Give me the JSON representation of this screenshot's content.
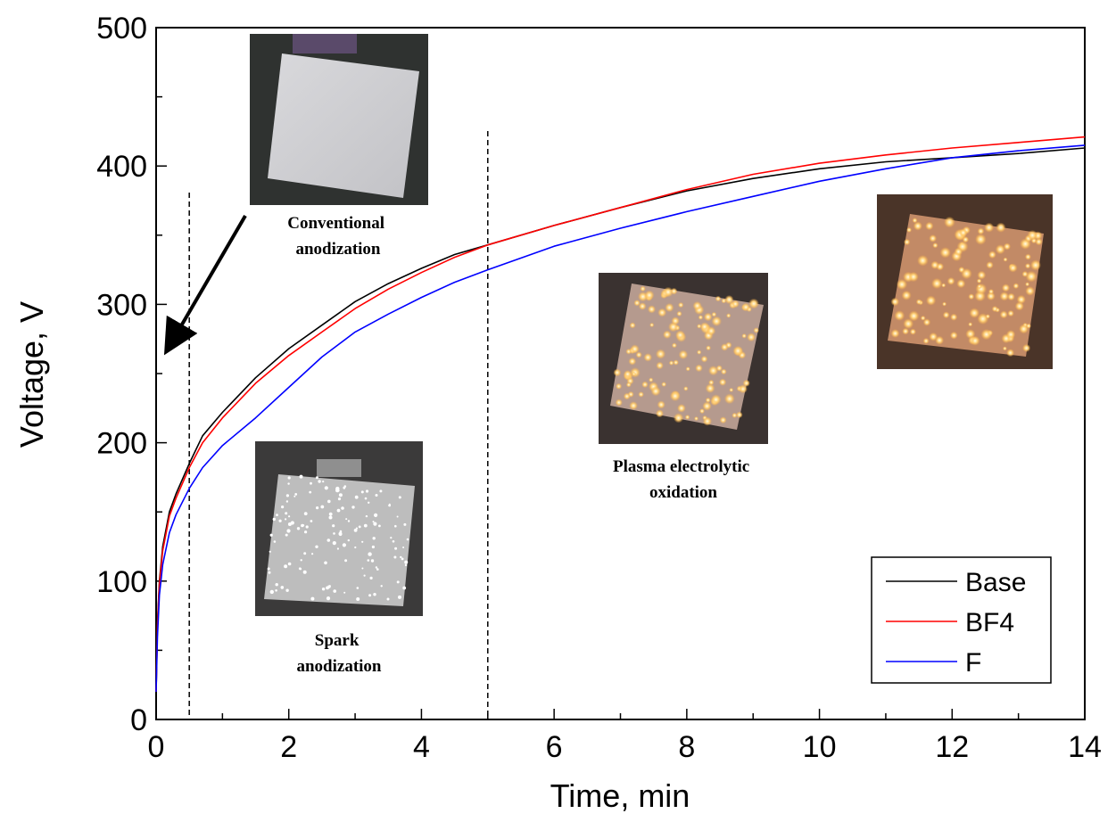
{
  "chart_data": {
    "type": "line",
    "xlabel": "Time, min",
    "ylabel": "Voltage, V",
    "xlim": [
      0,
      14
    ],
    "ylim": [
      0,
      500
    ],
    "xticks": [
      0,
      2,
      4,
      6,
      8,
      10,
      12,
      14
    ],
    "yticks": [
      0,
      100,
      200,
      300,
      400,
      500
    ],
    "legend_position": "bottom-right",
    "grid": false,
    "series": [
      {
        "name": "Base",
        "color": "#000000",
        "x": [
          0,
          0.02,
          0.05,
          0.1,
          0.2,
          0.3,
          0.5,
          0.7,
          1.0,
          1.5,
          2.0,
          2.5,
          3.0,
          3.5,
          4.0,
          4.5,
          5.0,
          6.0,
          7.0,
          8.0,
          9.0,
          10.0,
          11.0,
          12.0,
          13.0,
          14.0
        ],
        "values": [
          20,
          70,
          100,
          125,
          150,
          163,
          185,
          205,
          222,
          247,
          268,
          285,
          302,
          315,
          326,
          336,
          343,
          357,
          370,
          382,
          391,
          398,
          403,
          406,
          409,
          413
        ]
      },
      {
        "name": "BF4",
        "color": "#ff0000",
        "x": [
          0,
          0.02,
          0.05,
          0.1,
          0.2,
          0.3,
          0.5,
          0.7,
          1.0,
          1.5,
          2.0,
          2.5,
          3.0,
          3.5,
          4.0,
          4.5,
          5.0,
          6.0,
          7.0,
          8.0,
          9.0,
          10.0,
          11.0,
          12.0,
          13.0,
          14.0
        ],
        "values": [
          20,
          68,
          98,
          122,
          147,
          160,
          182,
          200,
          218,
          243,
          263,
          280,
          297,
          311,
          323,
          334,
          343,
          357,
          370,
          383,
          394,
          402,
          408,
          413,
          417,
          421
        ]
      },
      {
        "name": "F",
        "color": "#0000ff",
        "x": [
          0,
          0.02,
          0.05,
          0.1,
          0.2,
          0.3,
          0.5,
          0.7,
          1.0,
          1.5,
          2.0,
          2.5,
          3.0,
          3.5,
          4.0,
          4.5,
          5.0,
          6.0,
          7.0,
          8.0,
          9.0,
          10.0,
          11.0,
          12.0,
          13.0,
          14.0
        ],
        "values": [
          20,
          60,
          90,
          112,
          135,
          148,
          167,
          182,
          198,
          218,
          240,
          262,
          280,
          293,
          305,
          316,
          325,
          342,
          355,
          367,
          378,
          389,
          398,
          406,
          411,
          415
        ]
      }
    ],
    "reference_lines_x": [
      0.5,
      5.0
    ],
    "annotations": [
      {
        "id": "conventional",
        "lines": [
          "Conventional",
          "anodization"
        ]
      },
      {
        "id": "spark",
        "lines": [
          "Spark",
          "anodization"
        ]
      },
      {
        "id": "peo",
        "lines": [
          "Plasma electrolytic",
          "oxidation"
        ]
      }
    ]
  }
}
